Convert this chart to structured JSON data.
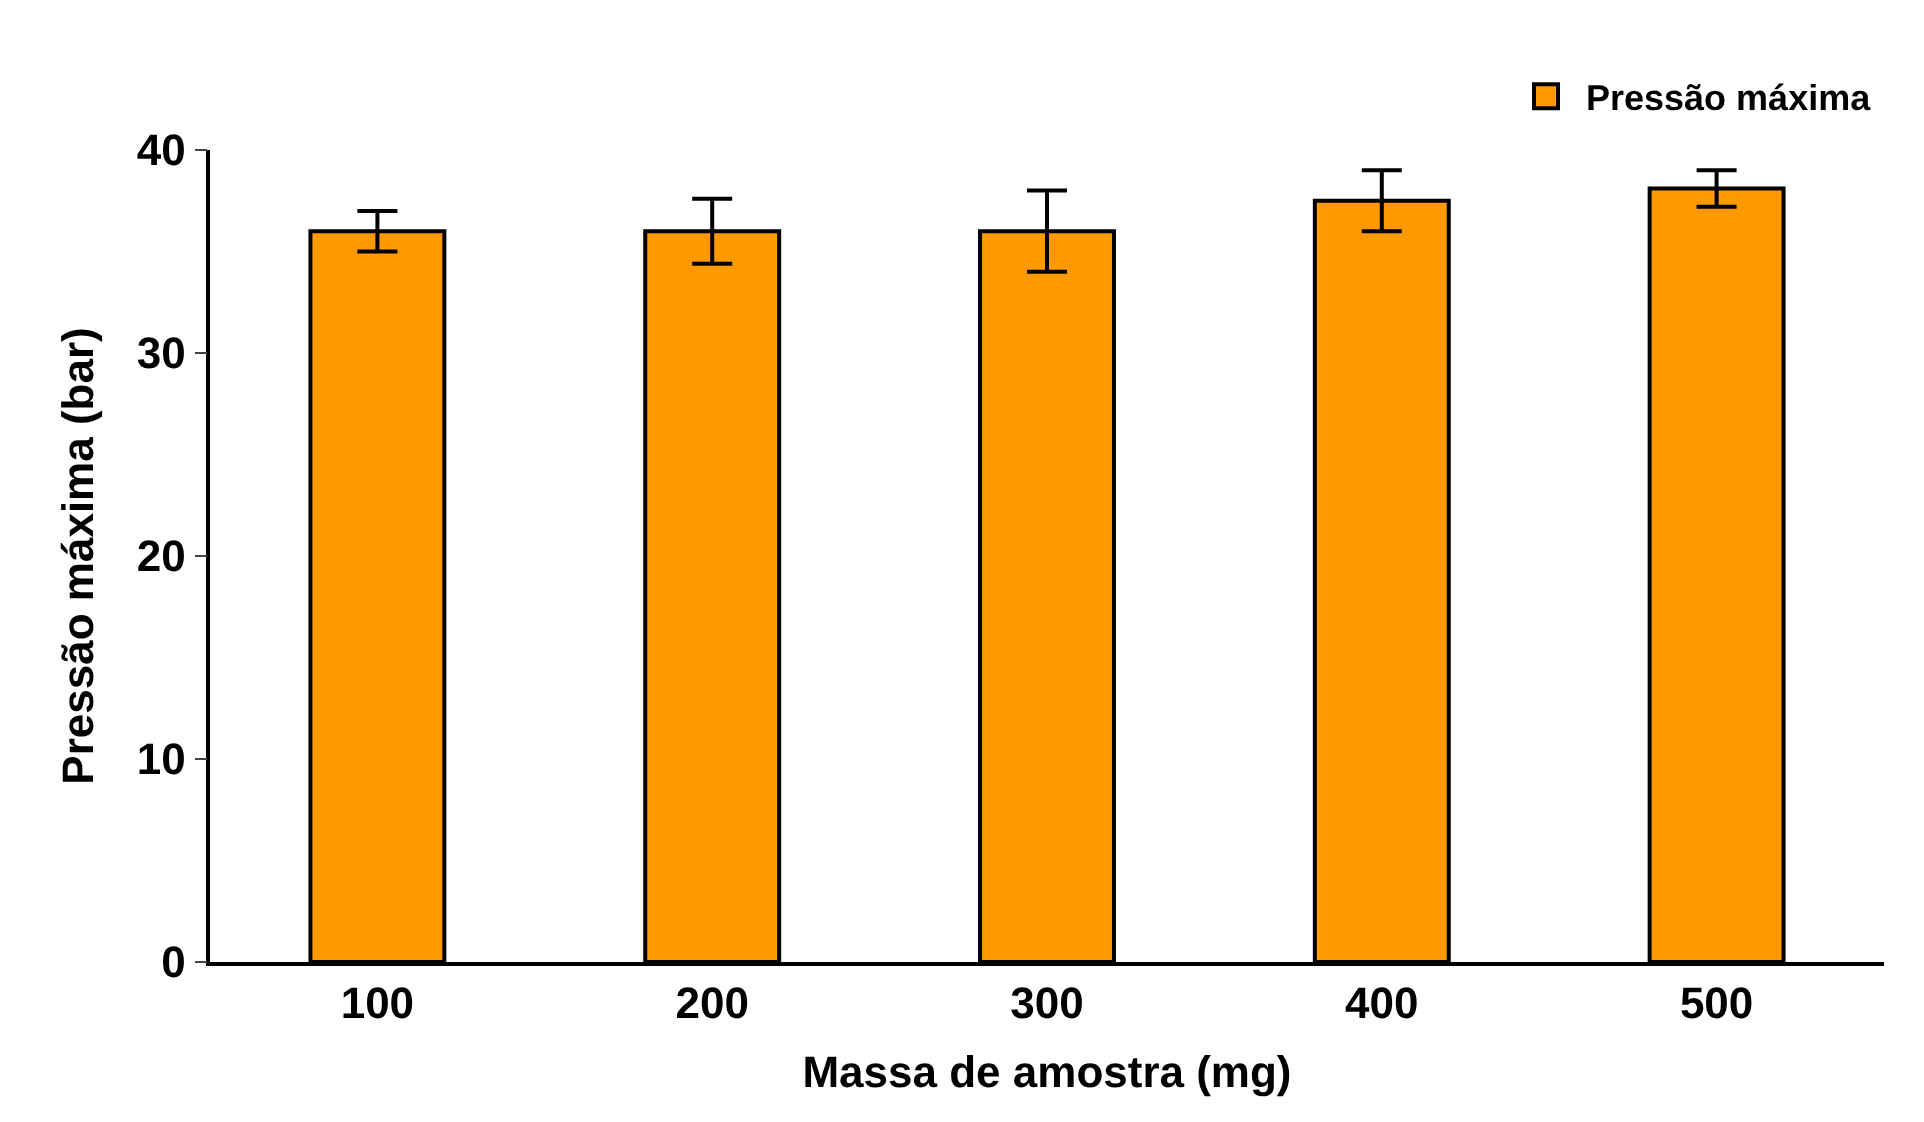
{
  "chart_data": {
    "type": "bar",
    "xlabel": "Massa de amostra (mg)",
    "ylabel": "Pressão máxima (bar)",
    "categories": [
      "100",
      "200",
      "300",
      "400",
      "500"
    ],
    "series": [
      {
        "name": "Pressão máxima",
        "color": "#ff9900",
        "values": [
          36,
          36,
          36,
          37.5,
          38.1
        ],
        "errors": [
          1,
          1.6,
          2,
          1.5,
          0.9
        ]
      }
    ],
    "ylim": [
      0,
      40
    ],
    "yticks": [
      0,
      10,
      20,
      30,
      40
    ],
    "grid": false,
    "legend": "top right"
  }
}
